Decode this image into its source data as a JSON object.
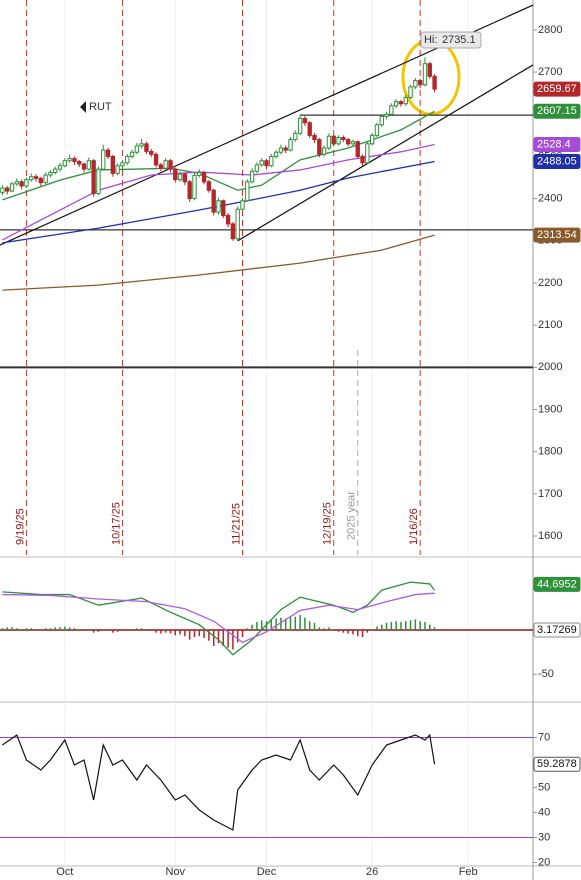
{
  "chart_data": [
    {
      "type": "candlestick",
      "symbol": "RUT",
      "hi_label": "Hi:",
      "xlim": [
        -0.5,
        110.5
      ],
      "ylim": [
        1555,
        2871
      ],
      "yticks": [
        1600,
        1700,
        1800,
        1900,
        2000,
        2100,
        2200,
        2300,
        2400,
        2500,
        2600,
        2700,
        2800
      ],
      "up_color": "#2f8f3a",
      "down_color": "#b3262a",
      "ohlc": [
        [
          2415,
          2432,
          2408,
          2425
        ],
        [
          2425,
          2430,
          2410,
          2418
        ],
        [
          2418,
          2440,
          2415,
          2435
        ],
        [
          2435,
          2448,
          2430,
          2440
        ],
        [
          2440,
          2445,
          2422,
          2430
        ],
        [
          2430,
          2450,
          2425,
          2445
        ],
        [
          2445,
          2460,
          2440,
          2452
        ],
        [
          2452,
          2458,
          2440,
          2448
        ],
        [
          2448,
          2452,
          2430,
          2438
        ],
        [
          2438,
          2462,
          2435,
          2456
        ],
        [
          2456,
          2468,
          2450,
          2462
        ],
        [
          2462,
          2476,
          2458,
          2470
        ],
        [
          2470,
          2485,
          2465,
          2478
        ],
        [
          2478,
          2496,
          2474,
          2490
        ],
        [
          2490,
          2505,
          2485,
          2495
        ],
        [
          2495,
          2500,
          2480,
          2488
        ],
        [
          2488,
          2492,
          2475,
          2482
        ],
        [
          2482,
          2486,
          2462,
          2470
        ],
        [
          2470,
          2498,
          2466,
          2490
        ],
        [
          2490,
          2494,
          2405,
          2412
        ],
        [
          2412,
          2476,
          2408,
          2470
        ],
        [
          2470,
          2528,
          2468,
          2515
        ],
        [
          2515,
          2520,
          2494,
          2500
        ],
        [
          2500,
          2504,
          2452,
          2460
        ],
        [
          2460,
          2484,
          2455,
          2478
        ],
        [
          2478,
          2492,
          2470,
          2485
        ],
        [
          2485,
          2506,
          2480,
          2500
        ],
        [
          2500,
          2516,
          2495,
          2510
        ],
        [
          2510,
          2532,
          2505,
          2525
        ],
        [
          2525,
          2542,
          2518,
          2530
        ],
        [
          2530,
          2535,
          2506,
          2512
        ],
        [
          2512,
          2518,
          2498,
          2505
        ],
        [
          2505,
          2510,
          2474,
          2480
        ],
        [
          2480,
          2485,
          2465,
          2472
        ],
        [
          2472,
          2496,
          2468,
          2490
        ],
        [
          2490,
          2494,
          2462,
          2470
        ],
        [
          2470,
          2474,
          2438,
          2445
        ],
        [
          2445,
          2464,
          2440,
          2458
        ],
        [
          2458,
          2462,
          2432,
          2440
        ],
        [
          2440,
          2444,
          2392,
          2400
        ],
        [
          2400,
          2462,
          2396,
          2455
        ],
        [
          2455,
          2470,
          2450,
          2462
        ],
        [
          2462,
          2466,
          2434,
          2440
        ],
        [
          2440,
          2445,
          2414,
          2420
        ],
        [
          2420,
          2424,
          2360,
          2368
        ],
        [
          2368,
          2402,
          2362,
          2395
        ],
        [
          2395,
          2398,
          2354,
          2360
        ],
        [
          2360,
          2366,
          2332,
          2340
        ],
        [
          2340,
          2345,
          2300,
          2305
        ],
        [
          2305,
          2382,
          2302,
          2375
        ],
        [
          2375,
          2402,
          2370,
          2395
        ],
        [
          2395,
          2446,
          2392,
          2440
        ],
        [
          2440,
          2472,
          2436,
          2465
        ],
        [
          2465,
          2486,
          2460,
          2480
        ],
        [
          2480,
          2496,
          2476,
          2490
        ],
        [
          2490,
          2494,
          2470,
          2478
        ],
        [
          2478,
          2506,
          2474,
          2500
        ],
        [
          2500,
          2516,
          2495,
          2510
        ],
        [
          2510,
          2528,
          2505,
          2520
        ],
        [
          2520,
          2526,
          2508,
          2515
        ],
        [
          2515,
          2546,
          2512,
          2540
        ],
        [
          2540,
          2562,
          2535,
          2555
        ],
        [
          2555,
          2600,
          2550,
          2590
        ],
        [
          2590,
          2596,
          2572,
          2580
        ],
        [
          2580,
          2584,
          2544,
          2550
        ],
        [
          2550,
          2556,
          2532,
          2540
        ],
        [
          2540,
          2544,
          2498,
          2505
        ],
        [
          2505,
          2526,
          2500,
          2520
        ],
        [
          2520,
          2555,
          2515,
          2548
        ],
        [
          2548,
          2552,
          2524,
          2530
        ],
        [
          2530,
          2550,
          2526,
          2545
        ],
        [
          2545,
          2550,
          2534,
          2540
        ],
        [
          2540,
          2544,
          2524,
          2530
        ],
        [
          2530,
          2540,
          2526,
          2535
        ],
        [
          2535,
          2538,
          2494,
          2500
        ],
        [
          2500,
          2505,
          2478,
          2485
        ],
        [
          2485,
          2536,
          2482,
          2530
        ],
        [
          2530,
          2556,
          2526,
          2550
        ],
        [
          2550,
          2580,
          2546,
          2575
        ],
        [
          2575,
          2600,
          2570,
          2595
        ],
        [
          2595,
          2606,
          2588,
          2600
        ],
        [
          2600,
          2626,
          2596,
          2620
        ],
        [
          2620,
          2636,
          2615,
          2630
        ],
        [
          2630,
          2634,
          2618,
          2625
        ],
        [
          2625,
          2646,
          2620,
          2640
        ],
        [
          2640,
          2670,
          2636,
          2665
        ],
        [
          2665,
          2686,
          2660,
          2680
        ],
        [
          2680,
          2684,
          2662,
          2670
        ],
        [
          2670,
          2735.1,
          2666,
          2720
        ],
        [
          2720,
          2724,
          2684,
          2690
        ],
        [
          2690,
          2695,
          2652,
          2659.67
        ]
      ],
      "series": [
        {
          "color": "#2f8f3a",
          "x": [
            0,
            12,
            20,
            35,
            41,
            49,
            54,
            62,
            72,
            83,
            90
          ],
          "values": [
            2397,
            2444,
            2468,
            2472,
            2460,
            2420,
            2432,
            2492,
            2520,
            2563,
            2607.15
          ]
        },
        {
          "color": "#a64bd6",
          "x": [
            0,
            10,
            20,
            31,
            41,
            52,
            62,
            72,
            83,
            90
          ],
          "values": [
            2302,
            2361,
            2420,
            2456,
            2463,
            2456,
            2468,
            2492,
            2511,
            2528.4
          ]
        },
        {
          "color": "#1f2fa8",
          "x": [
            0,
            20,
            41,
            52,
            62,
            72,
            90
          ],
          "values": [
            2295,
            2330,
            2373,
            2397,
            2420,
            2449,
            2488.05
          ]
        },
        {
          "color": "#8a5a2b",
          "x": [
            0,
            20,
            41,
            62,
            79,
            90
          ],
          "values": [
            2183,
            2195,
            2219,
            2247,
            2278,
            2313.54
          ]
        }
      ],
      "trendlines": [
        [
          [
            -0.5,
            2290
          ],
          [
            110.5,
            2859
          ]
        ],
        [
          [
            49,
            2300
          ],
          [
            110.5,
            2717
          ]
        ]
      ],
      "levels": [
        [
          -0.5,
          2000
        ],
        [
          -0.5,
          2326
        ],
        [
          62,
          2598
        ]
      ],
      "markers": [
        {
          "x": 5,
          "label": "9/19/25"
        },
        {
          "x": 25,
          "label": "10/17/25"
        },
        {
          "x": 50,
          "label": "11/21/25"
        },
        {
          "x": 69,
          "label": "12/19/25"
        },
        {
          "x": 87,
          "label": "1/16/26"
        }
      ],
      "year_marker": {
        "x": 74,
        "label": "2025 year"
      }
    },
    {
      "type": "macd",
      "xlim": [
        -0.5,
        110.5
      ],
      "ylim": [
        -79,
        79
      ],
      "yticks": [
        -50
      ],
      "histogram": {
        "color": "#2f8f3a",
        "neg_color": "#b3262a",
        "values": [
          2,
          3,
          3,
          2,
          1,
          2,
          2,
          1,
          1,
          2,
          2,
          3,
          3,
          4,
          3,
          2,
          1,
          0,
          1,
          -3,
          -2,
          1,
          0,
          -3,
          -2,
          -1,
          0,
          1,
          2,
          2,
          1,
          -1,
          -3,
          -4,
          -3,
          -4,
          -6,
          -5,
          -7,
          -11,
          -8,
          -7,
          -9,
          -12,
          -18,
          -15,
          -18,
          -20,
          -22,
          -14,
          -8,
          2,
          6,
          9,
          11,
          10,
          12,
          13,
          14,
          13,
          15,
          15,
          17,
          14,
          10,
          8,
          3,
          2,
          3,
          0,
          -2,
          -3,
          -4,
          -5,
          -7,
          -8,
          -3,
          1,
          4,
          6,
          8,
          9,
          10,
          9,
          10,
          11,
          12,
          10,
          9,
          6,
          3.17269
        ]
      },
      "series": [
        {
          "color": "#2f8f3a",
          "x": [
            0,
            8,
            14,
            20,
            29,
            35,
            41,
            45,
            48,
            52,
            58,
            62,
            69,
            73,
            76,
            79,
            85,
            89,
            90
          ],
          "values": [
            43,
            40,
            40,
            28,
            36,
            20,
            6,
            -11,
            -28,
            -11,
            23,
            37,
            28,
            20,
            28,
            45,
            54,
            52,
            44.6952
          ]
        },
        {
          "color": "#b05be0",
          "x": [
            0,
            10,
            20,
            30,
            38,
            44,
            50,
            55,
            62,
            68,
            74,
            80,
            86,
            90
          ],
          "values": [
            40,
            39,
            35,
            32,
            24,
            10,
            -14,
            -2,
            22,
            28,
            23,
            32,
            40,
            41.52
          ]
        }
      ]
    },
    {
      "type": "rsi",
      "xlim": [
        -0.5,
        110.5
      ],
      "ylim": [
        19,
        83
      ],
      "yticks": [
        20,
        30,
        40,
        50,
        70
      ],
      "levels": [
        70,
        30
      ],
      "level_color": "#9b3fc4",
      "grid": true,
      "xticks": [
        {
          "value": 13,
          "label": "Oct"
        },
        {
          "value": 36,
          "label": "Nov"
        },
        {
          "value": 55,
          "label": "Dec"
        },
        {
          "value": 77,
          "label": "26"
        },
        {
          "value": 97,
          "label": "Feb"
        }
      ],
      "series": [
        {
          "color": "#111111",
          "x": [
            0,
            3,
            5,
            8,
            10,
            13,
            15,
            17,
            19,
            21,
            23,
            25,
            28,
            30,
            33,
            36,
            38,
            41,
            44,
            46,
            48,
            49,
            52,
            54,
            57,
            60,
            62,
            64,
            66,
            69,
            71,
            74,
            77,
            80,
            83,
            86,
            88,
            89,
            90
          ],
          "values": [
            67,
            71,
            61,
            57,
            61,
            69,
            59,
            61,
            45,
            67,
            59,
            61,
            53,
            59,
            53,
            45,
            47,
            41,
            37,
            35,
            33,
            49,
            57,
            61,
            63,
            61,
            69,
            57,
            53,
            59,
            55,
            47,
            59,
            67,
            69,
            71,
            69,
            71,
            59.2878
          ]
        }
      ]
    }
  ]
}
